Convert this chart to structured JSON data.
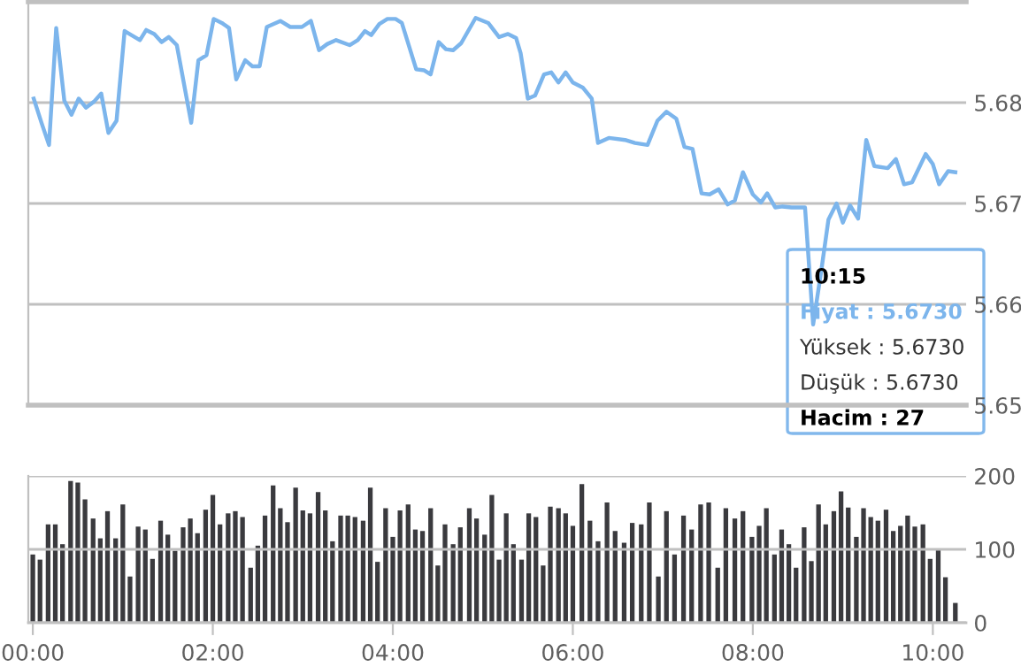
{
  "chart_data": [
    {
      "type": "line",
      "color": "#7cb5ec",
      "x": [
        0.01,
        0.1,
        0.18,
        0.26,
        0.35,
        0.43,
        0.51,
        0.59,
        0.68,
        0.76,
        0.84,
        0.93,
        1.02,
        1.19,
        1.26,
        1.35,
        1.43,
        1.51,
        1.6,
        1.76,
        1.84,
        1.93,
        2.01,
        2.1,
        2.18,
        2.26,
        2.36,
        2.44,
        2.52,
        2.6,
        2.75,
        2.86,
        2.99,
        3.09,
        3.18,
        3.27,
        3.37,
        3.52,
        3.61,
        3.69,
        3.76,
        3.85,
        3.94,
        4.03,
        4.1,
        4.26,
        4.35,
        4.42,
        4.51,
        4.59,
        4.67,
        4.76,
        4.92,
        5.06,
        5.18,
        5.28,
        5.37,
        5.42,
        5.5,
        5.58,
        5.68,
        5.76,
        5.84,
        5.92,
        6.0,
        6.11,
        6.21,
        6.28,
        6.4,
        6.58,
        6.69,
        6.83,
        6.94,
        7.04,
        7.15,
        7.24,
        7.33,
        7.43,
        7.52,
        7.62,
        7.72,
        7.8,
        7.89,
        8.0,
        8.09,
        8.16,
        8.25,
        8.33,
        8.43,
        8.58,
        8.67,
        8.76,
        8.84,
        8.93,
        9.0,
        9.08,
        9.17,
        9.26,
        9.35,
        9.5,
        9.59,
        9.68,
        9.77,
        9.92,
        10.0,
        10.07,
        10.17,
        10.25
      ],
      "values": [
        5.6804,
        5.6779,
        5.6758,
        5.6874,
        5.6802,
        5.6788,
        5.6804,
        5.6795,
        5.6801,
        5.6809,
        5.677,
        5.6782,
        5.6871,
        5.6862,
        5.6872,
        5.6868,
        5.686,
        5.6865,
        5.6857,
        5.678,
        5.6842,
        5.6847,
        5.6883,
        5.6879,
        5.6874,
        5.6823,
        5.6842,
        5.6836,
        5.6836,
        5.6875,
        5.6881,
        5.6875,
        5.6875,
        5.6881,
        5.6852,
        5.6858,
        5.6862,
        5.6857,
        5.6862,
        5.6871,
        5.6867,
        5.6878,
        5.6883,
        5.6883,
        5.6879,
        5.6833,
        5.6832,
        5.6828,
        5.686,
        5.6853,
        5.6852,
        5.6859,
        5.6884,
        5.6879,
        5.6865,
        5.6868,
        5.6864,
        5.6849,
        5.6804,
        5.6807,
        5.6828,
        5.683,
        5.682,
        5.683,
        5.682,
        5.6815,
        5.6804,
        5.676,
        5.6765,
        5.6763,
        5.676,
        5.6758,
        5.6782,
        5.6791,
        5.6784,
        5.6756,
        5.6754,
        5.671,
        5.6709,
        5.6714,
        5.6699,
        5.6703,
        5.6731,
        5.6709,
        5.6701,
        5.671,
        5.6696,
        5.6697,
        5.6696,
        5.6696,
        5.658,
        5.6633,
        5.6684,
        5.67,
        5.6681,
        5.6698,
        5.6685,
        5.6763,
        5.6737,
        5.6735,
        5.6744,
        5.6719,
        5.6721,
        5.6749,
        5.6739,
        5.6719,
        5.6732,
        5.6731
      ],
      "xlim": [
        -0.05,
        10.37
      ],
      "ylim": [
        5.65,
        5.69
      ],
      "yticks": [
        5.65,
        5.66,
        5.67,
        5.68
      ],
      "tick_labels": "y",
      "grid": "y",
      "annotations": [
        "10:15",
        "Fiyat : 5.6730",
        "Yüksek : 5.6730",
        "Düşük : 5.6730",
        "Hacim : 27"
      ]
    },
    {
      "type": "bar",
      "color": "#3a3a3e",
      "x": [
        0,
        0.08,
        0.17,
        0.25,
        0.33,
        0.42,
        0.5,
        0.58,
        0.67,
        0.75,
        0.83,
        0.92,
        1.0,
        1.08,
        1.17,
        1.25,
        1.33,
        1.42,
        1.5,
        1.58,
        1.67,
        1.75,
        1.83,
        1.92,
        2.0,
        2.08,
        2.17,
        2.25,
        2.33,
        2.42,
        2.5,
        2.58,
        2.67,
        2.75,
        2.83,
        2.92,
        3.0,
        3.08,
        3.17,
        3.25,
        3.33,
        3.42,
        3.5,
        3.58,
        3.67,
        3.75,
        3.83,
        3.92,
        4.0,
        4.08,
        4.17,
        4.25,
        4.33,
        4.42,
        4.5,
        4.58,
        4.67,
        4.75,
        4.85,
        4.93,
        5.02,
        5.1,
        5.18,
        5.26,
        5.34,
        5.43,
        5.51,
        5.59,
        5.67,
        5.75,
        5.84,
        5.92,
        6.0,
        6.1,
        6.19,
        6.28,
        6.38,
        6.47,
        6.57,
        6.66,
        6.76,
        6.85,
        6.95,
        7.04,
        7.13,
        7.23,
        7.32,
        7.42,
        7.51,
        7.61,
        7.7,
        7.8,
        7.89,
        7.99,
        8.07,
        8.15,
        8.24,
        8.32,
        8.4,
        8.48,
        8.57,
        8.65,
        8.73,
        8.81,
        8.9,
        8.98,
        9.06,
        9.15,
        9.23,
        9.31,
        9.39,
        9.48,
        9.56,
        9.64,
        9.72,
        9.8,
        9.89,
        9.97,
        10.06,
        10.14,
        10.25
      ],
      "values": [
        93,
        86,
        134,
        134,
        107,
        193,
        191,
        168,
        142,
        115,
        152,
        115,
        161,
        63,
        131,
        127,
        87,
        139,
        120,
        98,
        130,
        142,
        122,
        154,
        174,
        134,
        149,
        152,
        144,
        75,
        105,
        146,
        187,
        156,
        137,
        184,
        153,
        149,
        178,
        153,
        111,
        146,
        146,
        144,
        139,
        184,
        83,
        156,
        117,
        153,
        161,
        127,
        125,
        156,
        78,
        134,
        107,
        130,
        156,
        142,
        120,
        174,
        86,
        149,
        107,
        86,
        149,
        144,
        78,
        158,
        156,
        149,
        132,
        189,
        139,
        111,
        164,
        125,
        109,
        136,
        134,
        164,
        63,
        152,
        93,
        146,
        127,
        161,
        164,
        75,
        156,
        142,
        152,
        117,
        132,
        156,
        93,
        127,
        107,
        75,
        130,
        84,
        161,
        134,
        152,
        179,
        157,
        117,
        156,
        144,
        139,
        154,
        125,
        132,
        146,
        131,
        134,
        87,
        101,
        62,
        27
      ],
      "xlim": [
        -0.05,
        10.37
      ],
      "ylim": [
        0,
        200
      ],
      "yticks": [
        0,
        100,
        200
      ],
      "xticks": [
        {
          "value": 0,
          "label": "00:00"
        },
        {
          "value": 2,
          "label": "02:00"
        },
        {
          "value": 4,
          "label": "04:00"
        },
        {
          "value": 6,
          "label": "06:00"
        },
        {
          "value": 8,
          "label": "08:00"
        },
        {
          "value": 10,
          "label": "10:00"
        }
      ],
      "grid": "y"
    }
  ]
}
